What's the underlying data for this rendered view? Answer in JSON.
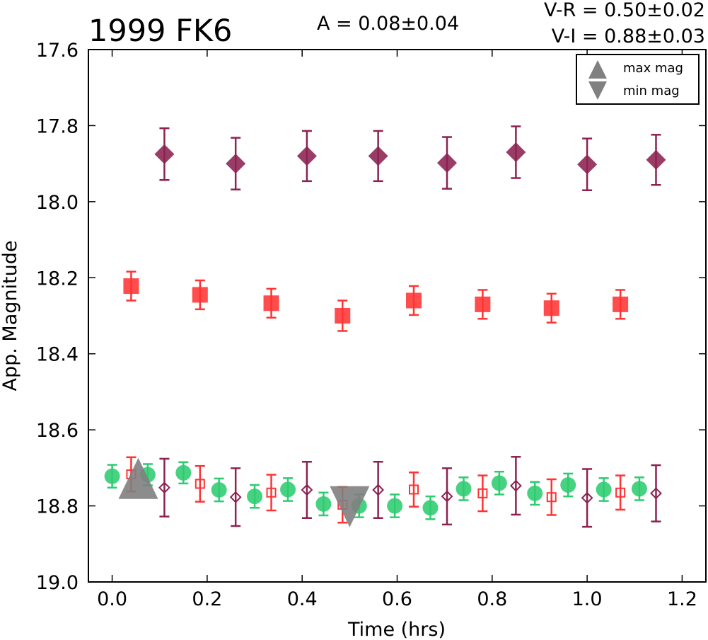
{
  "chart_data": {
    "type": "scatter",
    "title": "1999 FK6",
    "amplitude_text": "A  = 0.08±0.04",
    "color_index_texts": [
      "V-R = 0.50±0.02",
      "V-I  = 0.88±0.03"
    ],
    "xlabel": "Time (hrs)",
    "ylabel": "App. Magnitude",
    "xlim": [
      -0.05,
      1.25
    ],
    "ylim": [
      19.0,
      17.6
    ],
    "y_inverted": true,
    "xticks": [
      "0.0",
      "0.2",
      "0.4",
      "0.6",
      "0.8",
      "1.0",
      "1.2"
    ],
    "yticks": [
      "17.6",
      "17.8",
      "18.0",
      "18.2",
      "18.4",
      "18.6",
      "18.8",
      "19.0"
    ],
    "grid": false,
    "legend_position": "top-right",
    "legend": [
      {
        "label": "max mag",
        "marker": "triangle-up",
        "color": "#808080"
      },
      {
        "label": "min mag",
        "marker": "triangle-down",
        "color": "#808080"
      }
    ],
    "series": [
      {
        "marker": "diamond",
        "filled": true,
        "color": "#8b2252",
        "points": [
          {
            "x": 0.11,
            "y": 17.875,
            "err": 0.068
          },
          {
            "x": 0.26,
            "y": 17.9,
            "err": 0.068
          },
          {
            "x": 0.41,
            "y": 17.88,
            "err": 0.066
          },
          {
            "x": 0.56,
            "y": 17.88,
            "err": 0.066
          },
          {
            "x": 0.705,
            "y": 17.898,
            "err": 0.068
          },
          {
            "x": 0.85,
            "y": 17.87,
            "err": 0.068
          },
          {
            "x": 1.0,
            "y": 17.902,
            "err": 0.068
          },
          {
            "x": 1.145,
            "y": 17.89,
            "err": 0.066
          }
        ]
      },
      {
        "marker": "square",
        "filled": true,
        "color": "#ff3333",
        "points": [
          {
            "x": 0.04,
            "y": 18.222,
            "err": 0.038
          },
          {
            "x": 0.185,
            "y": 18.245,
            "err": 0.038
          },
          {
            "x": 0.335,
            "y": 18.267,
            "err": 0.038
          },
          {
            "x": 0.485,
            "y": 18.3,
            "err": 0.04
          },
          {
            "x": 0.635,
            "y": 18.26,
            "err": 0.038
          },
          {
            "x": 0.78,
            "y": 18.27,
            "err": 0.038
          },
          {
            "x": 0.925,
            "y": 18.28,
            "err": 0.038
          },
          {
            "x": 1.07,
            "y": 18.27,
            "err": 0.038
          }
        ]
      },
      {
        "marker": "circle",
        "filled": true,
        "color": "#2ecc71",
        "points": [
          {
            "x": 0.0,
            "y": 18.722,
            "err": 0.03
          },
          {
            "x": 0.075,
            "y": 18.718,
            "err": 0.028
          },
          {
            "x": 0.15,
            "y": 18.713,
            "err": 0.028
          },
          {
            "x": 0.225,
            "y": 18.758,
            "err": 0.03
          },
          {
            "x": 0.3,
            "y": 18.775,
            "err": 0.03
          },
          {
            "x": 0.37,
            "y": 18.757,
            "err": 0.03
          },
          {
            "x": 0.445,
            "y": 18.795,
            "err": 0.03
          },
          {
            "x": 0.52,
            "y": 18.8,
            "err": 0.03
          },
          {
            "x": 0.595,
            "y": 18.8,
            "err": 0.03
          },
          {
            "x": 0.67,
            "y": 18.805,
            "err": 0.03
          },
          {
            "x": 0.74,
            "y": 18.755,
            "err": 0.03
          },
          {
            "x": 0.815,
            "y": 18.74,
            "err": 0.03
          },
          {
            "x": 0.89,
            "y": 18.767,
            "err": 0.03
          },
          {
            "x": 0.96,
            "y": 18.745,
            "err": 0.03
          },
          {
            "x": 1.035,
            "y": 18.757,
            "err": 0.03
          },
          {
            "x": 1.11,
            "y": 18.755,
            "err": 0.03
          }
        ]
      },
      {
        "marker": "square",
        "filled": false,
        "color": "#ff3333",
        "points": [
          {
            "x": 0.04,
            "y": 18.717,
            "err": 0.045
          },
          {
            "x": 0.185,
            "y": 18.742,
            "err": 0.047
          },
          {
            "x": 0.335,
            "y": 18.765,
            "err": 0.047
          },
          {
            "x": 0.485,
            "y": 18.797,
            "err": 0.047
          },
          {
            "x": 0.635,
            "y": 18.757,
            "err": 0.045
          },
          {
            "x": 0.78,
            "y": 18.767,
            "err": 0.047
          },
          {
            "x": 0.925,
            "y": 18.777,
            "err": 0.047
          },
          {
            "x": 1.07,
            "y": 18.765,
            "err": 0.045
          }
        ]
      },
      {
        "marker": "diamond",
        "filled": false,
        "color": "#8b2252",
        "points": [
          {
            "x": 0.11,
            "y": 18.752,
            "err": 0.076
          },
          {
            "x": 0.26,
            "y": 18.777,
            "err": 0.076
          },
          {
            "x": 0.41,
            "y": 18.758,
            "err": 0.074
          },
          {
            "x": 0.56,
            "y": 18.758,
            "err": 0.074
          },
          {
            "x": 0.705,
            "y": 18.775,
            "err": 0.074
          },
          {
            "x": 0.85,
            "y": 18.747,
            "err": 0.076
          },
          {
            "x": 1.0,
            "y": 18.779,
            "err": 0.076
          },
          {
            "x": 1.145,
            "y": 18.767,
            "err": 0.074
          }
        ]
      },
      {
        "marker": "triangle-up",
        "filled": true,
        "color": "#808080",
        "points": [
          {
            "x": 0.055,
            "y": 18.737
          }
        ]
      },
      {
        "marker": "triangle-down",
        "filled": true,
        "color": "#808080",
        "points": [
          {
            "x": 0.5,
            "y": 18.793
          }
        ]
      }
    ]
  }
}
